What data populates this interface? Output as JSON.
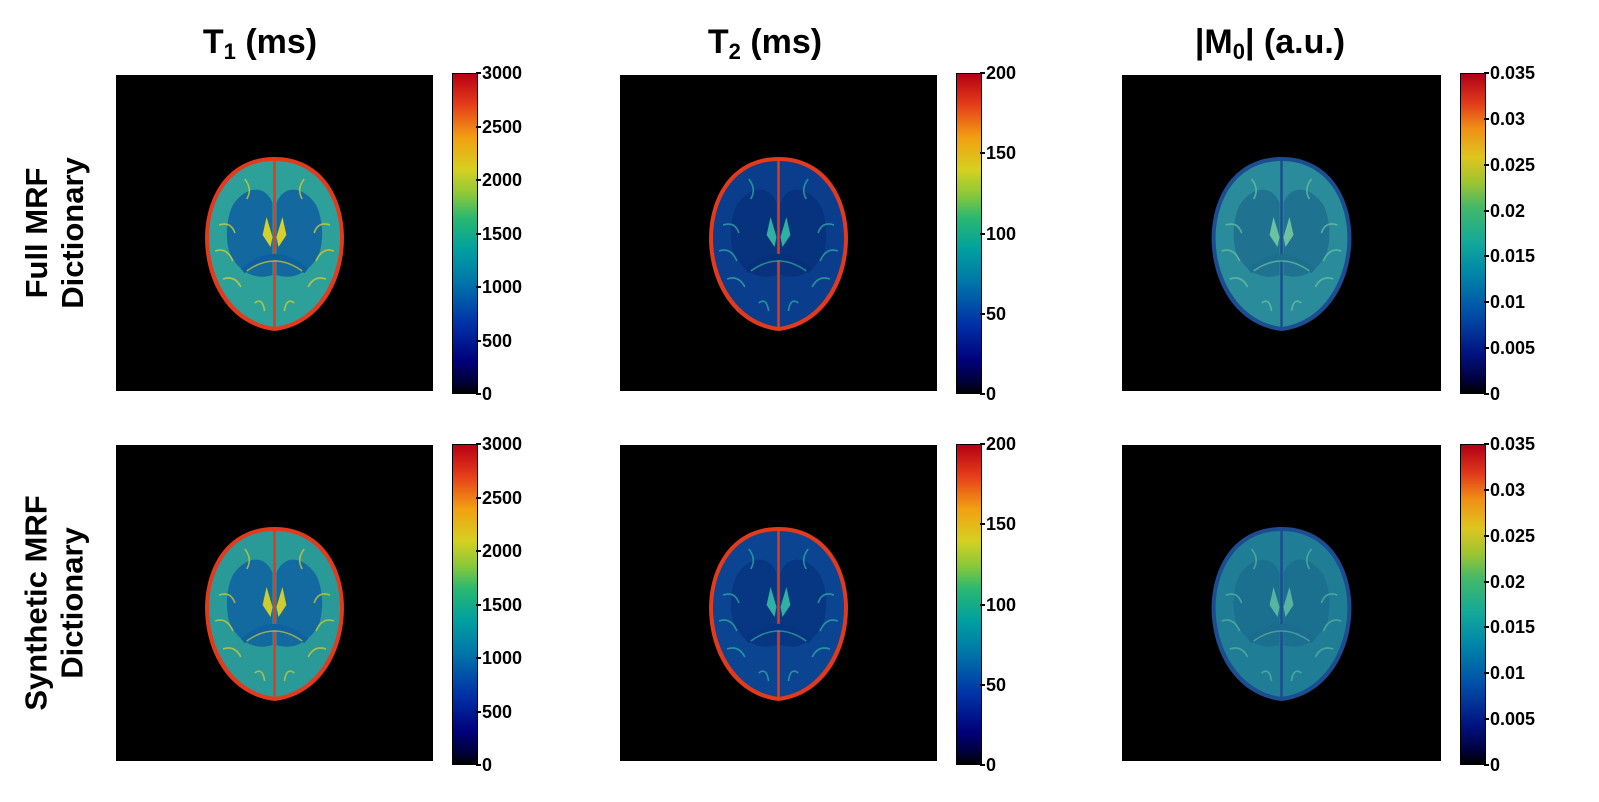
{
  "columns": [
    {
      "base": "T",
      "sub": "1",
      "unit": " (ms)"
    },
    {
      "base": "T",
      "sub": "2",
      "unit": " (ms)"
    },
    {
      "pre": "|M",
      "sub": "0",
      "post": "| (a.u.)"
    }
  ],
  "rows": [
    {
      "line1": "Full MRF",
      "line2": "Dictionary"
    },
    {
      "line1": "Synthetic MRF",
      "line2": "Dictionary"
    }
  ],
  "colorbars": {
    "t1": {
      "min": 0,
      "max": 3000,
      "ticks": [
        "3000",
        "2500",
        "2000",
        "1500",
        "1000",
        "500",
        "0"
      ]
    },
    "t2": {
      "min": 0,
      "max": 200,
      "ticks": [
        "200",
        "150",
        "100",
        "50",
        "0"
      ]
    },
    "m0": {
      "min": 0,
      "max": 0.035,
      "ticks": [
        "0.035",
        "0.03",
        "0.025",
        "0.02",
        "0.015",
        "0.01",
        "0.005",
        "0"
      ]
    }
  },
  "panels": [
    {
      "row": "full",
      "map": "t1",
      "colors": {
        "tissue": "#2ea09a",
        "white_matter": "#0e5fa0",
        "highlight": "#d8d02a",
        "edge": "#e23a1c"
      }
    },
    {
      "row": "full",
      "map": "t2",
      "colors": {
        "tissue": "#0a3d8c",
        "white_matter": "#07307a",
        "highlight": "#2fb0a2",
        "edge": "#e23a1c"
      }
    },
    {
      "row": "full",
      "map": "m0",
      "colors": {
        "tissue": "#2a8c9a",
        "white_matter": "#1d6f8e",
        "highlight": "#6cc2a0",
        "edge": "#1b4d90"
      }
    },
    {
      "row": "synthetic",
      "map": "t1",
      "colors": {
        "tissue": "#2a9a98",
        "white_matter": "#0f62a2",
        "highlight": "#d0cc2c",
        "edge": "#e23a1c"
      }
    },
    {
      "row": "synthetic",
      "map": "t2",
      "colors": {
        "tissue": "#0b4490",
        "white_matter": "#073480",
        "highlight": "#2fb0a2",
        "edge": "#e23a1c"
      }
    },
    {
      "row": "synthetic",
      "map": "m0",
      "colors": {
        "tissue": "#1f7e96",
        "white_matter": "#1b6c8e",
        "highlight": "#58b4a0",
        "edge": "#1b4d90"
      }
    }
  ]
}
